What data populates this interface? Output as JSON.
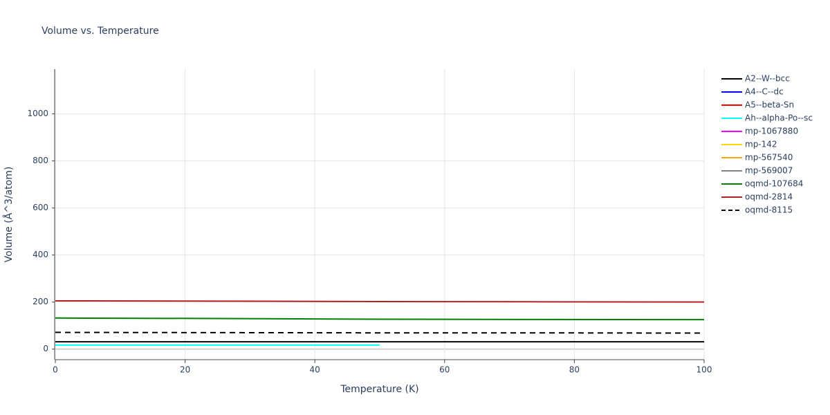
{
  "chart_data": {
    "type": "line",
    "title": "Volume vs. Temperature",
    "x_label": "Temperature (K)",
    "y_label": "Volume (Å^3/atom)",
    "xlim": [
      0,
      100
    ],
    "xticks": [
      0,
      20,
      40,
      60,
      80,
      100
    ],
    "ylim": [
      -45,
      1190
    ],
    "yticks": [
      0,
      200,
      400,
      600,
      800,
      1000
    ],
    "grid": true,
    "legend": "right",
    "series": [
      {
        "name": "A2--W--bcc",
        "color": "#000000",
        "x": [
          0,
          25,
          50,
          75,
          100
        ],
        "values": [
          31,
          31,
          31,
          31,
          31
        ]
      },
      {
        "name": "A4--C--dc",
        "color": "#0000ff",
        "x": [],
        "values": []
      },
      {
        "name": "A5--beta-Sn",
        "color": "#ff0000",
        "x": [],
        "values": []
      },
      {
        "name": "Ah--alpha-Po--sc",
        "color": "#00ffff",
        "x": [
          0,
          25,
          50
        ],
        "values": [
          17,
          17,
          17
        ]
      },
      {
        "name": "mp-1067880",
        "color": "#ff00ff",
        "x": [],
        "values": []
      },
      {
        "name": "mp-142",
        "color": "#ffd700",
        "x": [],
        "values": []
      },
      {
        "name": "mp-567540",
        "color": "#ffa500",
        "x": [],
        "values": []
      },
      {
        "name": "mp-569007",
        "color": "#808080",
        "x": [],
        "values": []
      },
      {
        "name": "oqmd-107684",
        "color": "#008000",
        "x": [
          0,
          25,
          50,
          75,
          100
        ],
        "values": [
          132,
          130,
          127,
          126,
          125
        ]
      },
      {
        "name": "oqmd-2814",
        "color": "#b22222",
        "x": [
          0,
          25,
          50,
          75,
          100
        ],
        "values": [
          205,
          204,
          202,
          201,
          200
        ]
      },
      {
        "name": "oqmd-8115",
        "color": "#000000",
        "dash": true,
        "x": [
          0,
          25,
          50,
          75,
          100
        ],
        "values": [
          71,
          70,
          69,
          69,
          68
        ]
      }
    ]
  }
}
